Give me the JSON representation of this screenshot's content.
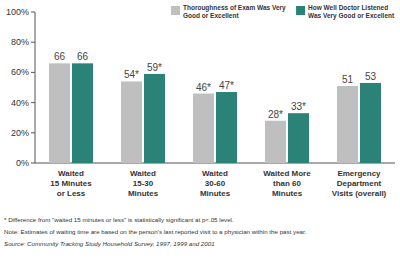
{
  "chart_data": {
    "type": "bar",
    "categories": [
      "Waited\n15 Minutes\nor Less",
      "Waited\n15-30\nMinutes",
      "Waited\n30-60\nMinutes",
      "Waited More\nthan 60\nMinutes",
      "Emergency\nDepartment\nVisits (overall)"
    ],
    "series": [
      {
        "name": "Thoroughness of Exam Was Very\nGood or Excellent",
        "color": "#bfbfbf",
        "values": [
          66,
          54,
          46,
          28,
          51
        ],
        "value_labels": [
          "66",
          "54*",
          "46*",
          "28*",
          "51"
        ]
      },
      {
        "name": "How Well Doctor Listened\nWas Very Good or Excellent",
        "color": "#2b8276",
        "values": [
          66,
          59,
          47,
          33,
          53
        ],
        "value_labels": [
          "66",
          "59*",
          "47*",
          "33*",
          "53"
        ]
      }
    ],
    "ylim": [
      0,
      100
    ],
    "yticks": [
      {
        "value": 0,
        "label": "0%"
      },
      {
        "value": 20,
        "label": "20%"
      },
      {
        "value": 40,
        "label": "40%"
      },
      {
        "value": 60,
        "label": "60%"
      },
      {
        "value": 80,
        "label": "80%"
      },
      {
        "value": 100,
        "label": "100%"
      }
    ],
    "grid": false,
    "legend": "top-right",
    "data_labels": true,
    "annotations": [
      "* Difference from \"waited 15 minutes or less\" is statistically significant at p<.05 level.",
      "Note: Estimates of waiting time are based on the person's last reported visit to a physician within the past year.",
      "Source: Community Tracking Study Household Survey, 1997, 1999 and 2001"
    ]
  }
}
